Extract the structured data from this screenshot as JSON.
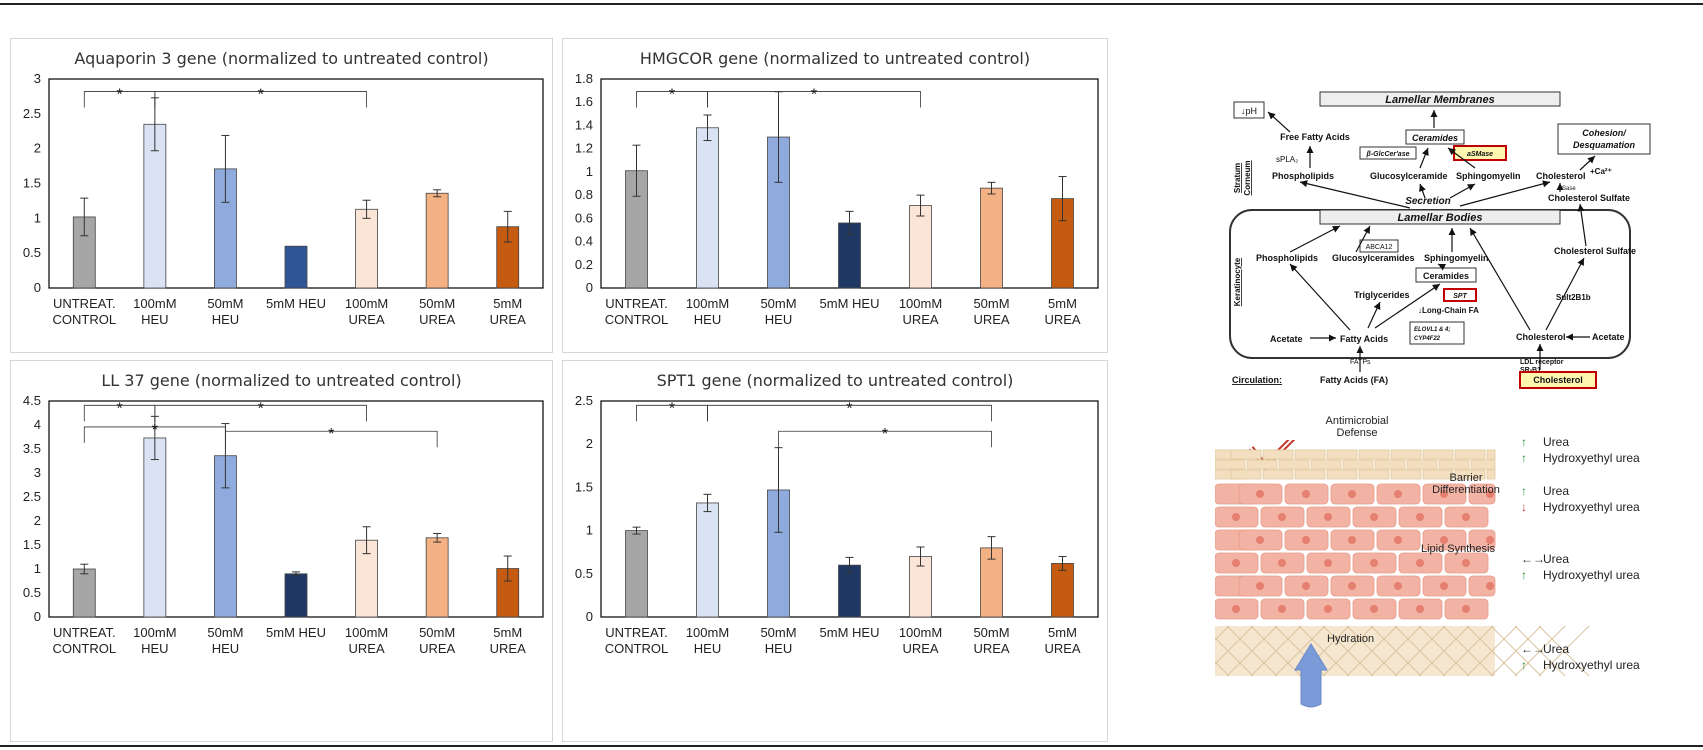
{
  "colors": {
    "untreated": "#a6a6a6",
    "heu100": "#dae3f3",
    "heu50": "#8faadc",
    "heu5": "#2f5597",
    "heu5_dark": "#203864",
    "urea100": "#fbe5d6",
    "urea50": "#f4b183",
    "urea5": "#c55a11"
  },
  "chart_data": [
    {
      "type": "bar",
      "title": "Aquaporin 3 gene (normalized to untreated control)",
      "categories": [
        [
          "UNTREAT.",
          "CONTROL"
        ],
        [
          "100mM",
          "HEU"
        ],
        [
          "50mM",
          "HEU"
        ],
        [
          "5mM HEU",
          ""
        ],
        [
          "100mM",
          "UREA"
        ],
        [
          "50mM",
          "UREA"
        ],
        [
          "5mM",
          "UREA"
        ]
      ],
      "values": [
        1.02,
        2.35,
        1.71,
        0.6,
        1.13,
        1.36,
        0.88
      ],
      "errors": [
        0.27,
        0.38,
        0.48,
        0.0,
        0.13,
        0.05,
        0.22
      ],
      "ylim": [
        0,
        3
      ],
      "yticks": [
        "0",
        "0.5",
        "1",
        "1.5",
        "2",
        "2.5",
        "3"
      ],
      "ytick_values": [
        0,
        0.5,
        1,
        1.5,
        2,
        2.5,
        3
      ],
      "star": "*"
    },
    {
      "type": "bar",
      "title": "HMGCOR gene (normalized to untreated control)",
      "categories": [
        [
          "UNTREAT.",
          "CONTROL"
        ],
        [
          "100mM",
          "HEU"
        ],
        [
          "50mM",
          "HEU"
        ],
        [
          "5mM HEU",
          ""
        ],
        [
          "100mM",
          "UREA"
        ],
        [
          "50mM",
          "UREA"
        ],
        [
          "5mM",
          "UREA"
        ]
      ],
      "values": [
        1.01,
        1.38,
        1.3,
        0.56,
        0.71,
        0.86,
        0.77
      ],
      "errors": [
        0.22,
        0.11,
        0.39,
        0.1,
        0.09,
        0.05,
        0.19
      ],
      "ylim": [
        0,
        1.8
      ],
      "yticks": [
        "0",
        "0.2",
        "0.4",
        "0.6",
        "0.8",
        "1",
        "1.2",
        "1.4",
        "1.6",
        "1.8"
      ],
      "ytick_values": [
        0,
        0.2,
        0.4,
        0.6,
        0.8,
        1,
        1.2,
        1.4,
        1.6,
        1.8
      ],
      "star": "*"
    },
    {
      "type": "bar",
      "title": "LL 37 gene (normalized to untreated control)",
      "categories": [
        [
          "UNTREAT.",
          "CONTROL"
        ],
        [
          "100mM",
          "HEU"
        ],
        [
          "50mM",
          "HEU"
        ],
        [
          "5mM HEU",
          ""
        ],
        [
          "100mM",
          "UREA"
        ],
        [
          "50mM",
          "UREA"
        ],
        [
          "5mM",
          "UREA"
        ]
      ],
      "values": [
        1.0,
        3.73,
        3.36,
        0.9,
        1.6,
        1.65,
        1.01
      ],
      "errors": [
        0.1,
        0.45,
        0.67,
        0.04,
        0.28,
        0.09,
        0.26
      ],
      "ylim": [
        0,
        4.5
      ],
      "yticks": [
        "0",
        "0.5",
        "1",
        "1.5",
        "2",
        "2.5",
        "3",
        "3.5",
        "4",
        "4.5"
      ],
      "ytick_values": [
        0,
        0.5,
        1,
        1.5,
        2,
        2.5,
        3,
        3.5,
        4,
        4.5
      ],
      "star": "*"
    },
    {
      "type": "bar",
      "title": "SPT1 gene (normalized to untreated control)",
      "categories": [
        [
          "UNTREAT.",
          "CONTROL"
        ],
        [
          "100mM",
          "HEU"
        ],
        [
          "50mM",
          "HEU"
        ],
        [
          "5mM HEU",
          ""
        ],
        [
          "100mM",
          "UREA"
        ],
        [
          "50mM",
          "UREA"
        ],
        [
          "5mM",
          "UREA"
        ]
      ],
      "values": [
        1.0,
        1.32,
        1.47,
        0.6,
        0.7,
        0.8,
        0.62
      ],
      "errors": [
        0.04,
        0.1,
        0.49,
        0.09,
        0.11,
        0.13,
        0.08
      ],
      "ylim": [
        0,
        2.5
      ],
      "yticks": [
        "0",
        "0.5",
        "1",
        "1.5",
        "2",
        "2.5"
      ],
      "ytick_values": [
        0,
        0.5,
        1,
        1.5,
        2,
        2.5
      ],
      "star": "*"
    }
  ],
  "diagram": {
    "lamellar_membranes": "Lamellar Membranes",
    "ph": "↓pH",
    "ffa": "Free Fatty Acids",
    "ceramides": "Ceramides",
    "cohesion": "Cohesion/",
    "desquamation": "Desquamation",
    "stratum1": "Stratum",
    "stratum2": "Corneum",
    "spla2": "sPLA₂",
    "glccerase": "β-GlcCer'ase",
    "asmase": "aSMase",
    "ca": "+Ca²⁺",
    "phospholipids": "Phospholipids",
    "glucosylceramide": "Glucosylceramide",
    "sphingomyelin": "Sphingomyelin",
    "cholesterol": "Cholesterol",
    "ssase": "SSase",
    "secretion": "Secretion",
    "chol_sulfate": "Cholesterol Sulfate",
    "lamellar_bodies": "Lamellar Bodies",
    "abca12": "ABCA12",
    "keratinocyte": "Keratinocyte",
    "phospholipids2": "Phospholipids",
    "glucosylceramides": "Glucosylceramides",
    "sphingomyelin2": "Sphingomyelin",
    "ceramides2": "Ceramides",
    "chol_sulfate2": "Cholesterol Sulfate",
    "triglycerides": "Triglycerides",
    "spt": "SPT",
    "longchain": "↓Long-Chain FA",
    "sult": "Sult2B1b",
    "acetate1": "Acetate",
    "fatty_acids": "Fatty Acids",
    "elovl1": "ELOVL1 & 4;",
    "elovl2": "CYP4F22",
    "cholesterol2": "Cholesterol",
    "acetate2": "Acetate",
    "fatps": "FATPs",
    "ldl": "LDL receptor",
    "srb1": "SR-B1",
    "circulation": "Circulation:",
    "fa": "Fatty Acids (FA)",
    "cholesterol3": "Cholesterol"
  },
  "skin": {
    "antimicrobial1": "Antimicrobial",
    "antimicrobial2": "Defense",
    "barrier1": "Barrier",
    "barrier2": "Differentiation",
    "lipid": "Lipid Synthesis",
    "hydration": "Hydration",
    "legend": [
      {
        "arrow": "↑",
        "color": "#2e8b3a",
        "text": "Urea"
      },
      {
        "arrow": "↑",
        "color": "#2e8b3a",
        "text": "Hydroxyethyl urea"
      },
      {
        "arrow": "↑",
        "color": "#2e8b3a",
        "text": "Urea"
      },
      {
        "arrow": "↓",
        "color": "#c0392b",
        "text": "Hydroxyethyl urea"
      },
      {
        "arrow": "←→",
        "color": "#333333",
        "text": "Urea"
      },
      {
        "arrow": "↑",
        "color": "#2e8b3a",
        "text": "Hydroxyethyl urea"
      },
      {
        "arrow": "←→",
        "color": "#333333",
        "text": "Urea"
      },
      {
        "arrow": "↑",
        "color": "#2e8b3a",
        "text": "Hydroxyethyl urea"
      }
    ]
  }
}
